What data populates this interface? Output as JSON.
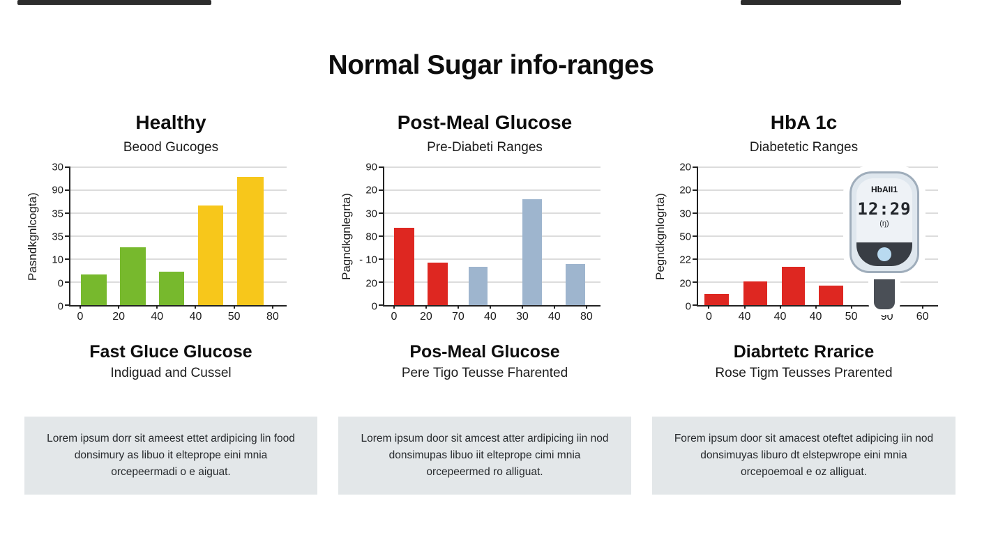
{
  "page": {
    "title": "Normal Sugar info-ranges"
  },
  "colors": {
    "green": "#77b92d",
    "yellow": "#f7c71b",
    "red": "#de2721",
    "blue_gray": "#9eb5ce",
    "note_bg": "#e3e7e9"
  },
  "chart_data": [
    {
      "type": "bar",
      "title": "Healthy",
      "subtitle": "Beood Gucoges",
      "ylabel": "Pasndkgnlcogta)",
      "y_ticks_top_to_bottom": [
        "30",
        "90",
        "35",
        "35",
        "10",
        "0",
        "0"
      ],
      "x_ticks": [
        "0",
        "20",
        "40",
        "40",
        "50",
        "80"
      ],
      "grid": true,
      "ylim_frac": [
        0,
        1
      ],
      "bars": [
        {
          "height_frac": 0.22,
          "x_pct": 4.8,
          "w_pct": 12.0,
          "color": "#77b92d"
        },
        {
          "height_frac": 0.42,
          "x_pct": 22.8,
          "w_pct": 12.0,
          "color": "#77b92d"
        },
        {
          "height_frac": 0.24,
          "x_pct": 41.0,
          "w_pct": 11.5,
          "color": "#77b92d"
        },
        {
          "height_frac": 0.72,
          "x_pct": 59.0,
          "w_pct": 11.5,
          "color": "#f7c71b"
        },
        {
          "height_frac": 0.93,
          "x_pct": 77.2,
          "w_pct": 12.0,
          "color": "#f7c71b"
        }
      ],
      "footer_title": "Fast Gluce Glucose",
      "footer_subtitle": "Indiguad and Cussel",
      "note": "Lorem ipsum dorr sit ameest ettet ardipicing lin food donsimury as libuo it elteprope eini mnia orcepeermadi o e aiguat."
    },
    {
      "type": "bar",
      "title": "Post-Meal Glucose",
      "subtitle": "Pre-Diabeti Ranges",
      "ylabel": "Pagndkgnlegrta)",
      "y_ticks_top_to_bottom": [
        "90",
        "20",
        "30",
        "80",
        "- 10",
        "20",
        "0"
      ],
      "x_ticks": [
        "0",
        "20",
        "70",
        "40",
        "30",
        "40",
        "80"
      ],
      "grid": true,
      "ylim_frac": [
        0,
        1
      ],
      "bars": [
        {
          "height_frac": 0.56,
          "x_pct": 4.5,
          "w_pct": 9.3,
          "color": "#de2721"
        },
        {
          "height_frac": 0.31,
          "x_pct": 19.9,
          "w_pct": 9.3,
          "color": "#de2721"
        },
        {
          "height_frac": 0.28,
          "x_pct": 38.9,
          "w_pct": 9.0,
          "color": "#9eb5ce"
        },
        {
          "height_frac": 0.77,
          "x_pct": 63.8,
          "w_pct": 9.0,
          "color": "#9eb5ce"
        },
        {
          "height_frac": 0.3,
          "x_pct": 84.0,
          "w_pct": 9.0,
          "color": "#9eb5ce"
        }
      ],
      "footer_title": "Pos-Meal Glucose",
      "footer_subtitle": "Pere Tigo Teusse Fharented",
      "note": "Lorem ipsum door sit amcest atter ardipicing iin nod donsimupas libuo iit elteprope cimi mnia orcepeermed ro alliguat."
    },
    {
      "type": "bar",
      "title": "HbA 1c",
      "subtitle": "Diabetetic Ranges",
      "ylabel": "Pegndkgnlogrta)",
      "y_ticks_top_to_bottom": [
        "20",
        "20",
        "30",
        "50",
        "22",
        "20",
        "0"
      ],
      "x_ticks": [
        "0",
        "40",
        "40",
        "40",
        "50",
        "90",
        "60"
      ],
      "grid": true,
      "ylim_frac": [
        0,
        1
      ],
      "bars": [
        {
          "height_frac": 0.08,
          "x_pct": 2.7,
          "w_pct": 10.2,
          "color": "#de2721"
        },
        {
          "height_frac": 0.17,
          "x_pct": 18.8,
          "w_pct": 9.9,
          "color": "#de2721"
        },
        {
          "height_frac": 0.28,
          "x_pct": 34.9,
          "w_pct": 9.6,
          "color": "#de2721"
        },
        {
          "height_frac": 0.14,
          "x_pct": 50.4,
          "w_pct": 10.1,
          "color": "#de2721"
        }
      ],
      "footer_title": "Diabrtetc Rrarice",
      "footer_subtitle": "Rose Tigm Teusses Prarented",
      "note": "Forem ipsum door sit amacest oteftet adipicing iin nod donsimuyas liburo dt elstepwrope eini mnia orcepoemoal e oz alliguat."
    }
  ],
  "meter": {
    "label": "HbAII1",
    "display": "12:29",
    "sub_symbol": "(ŋ)"
  }
}
